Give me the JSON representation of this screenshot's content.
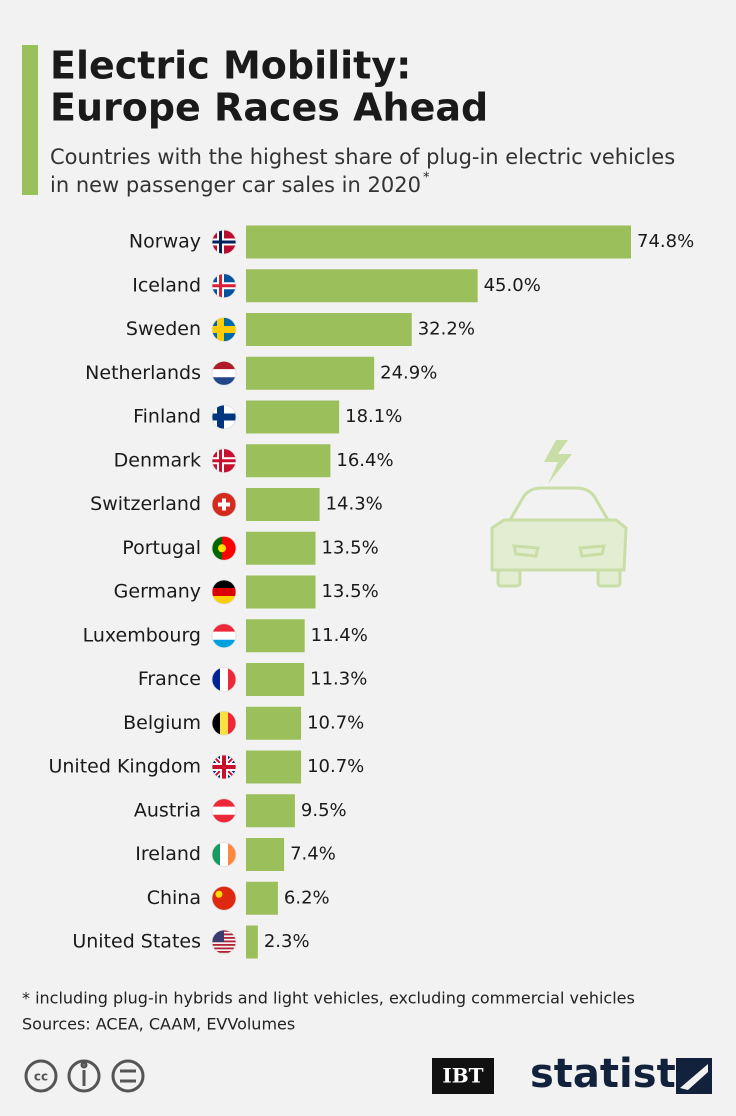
{
  "chart_data": {
    "type": "bar",
    "orientation": "horizontal",
    "title": [
      "Electric Mobility:",
      "Europe Races Ahead"
    ],
    "subtitle": [
      "Countries with the highest share of plug-in electric vehicles",
      "in new passenger car sales in 2020"
    ],
    "subtitle_marker": "*",
    "categories": [
      "Norway",
      "Iceland",
      "Sweden",
      "Netherlands",
      "Finland",
      "Denmark",
      "Switzerland",
      "Portugal",
      "Germany",
      "Luxembourg",
      "France",
      "Belgium",
      "United Kingdom",
      "Austria",
      "Ireland",
      "China",
      "United States"
    ],
    "values": [
      74.8,
      45.0,
      32.2,
      24.9,
      18.1,
      16.4,
      14.3,
      13.5,
      13.5,
      11.4,
      11.3,
      10.7,
      10.7,
      9.5,
      7.4,
      6.2,
      2.3
    ],
    "value_labels": [
      "74.8%",
      "45.0%",
      "32.2%",
      "24.9%",
      "18.1%",
      "16.4%",
      "14.3%",
      "13.5%",
      "13.5%",
      "11.4%",
      "11.3%",
      "10.7%",
      "10.7%",
      "9.5%",
      "7.4%",
      "6.2%",
      "2.3%"
    ],
    "color": "#9bbf5b",
    "footnote": "* including plug-in hybrids and light vehicles, excluding commercial vehicles",
    "source": "Sources: ACEA, CAAM, EVVolumes",
    "logos": [
      "IBT",
      "statista"
    ]
  }
}
